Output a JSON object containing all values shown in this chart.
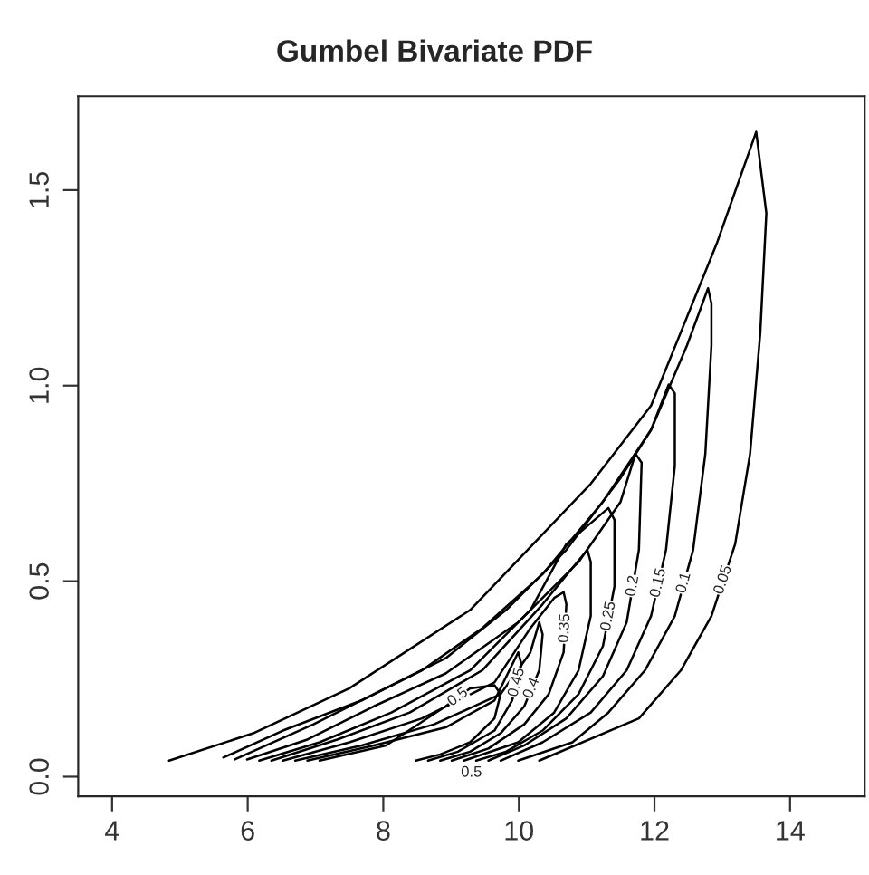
{
  "chart_data": {
    "type": "line",
    "title": "Gumbel Bivariate PDF",
    "xlim": [
      3.5,
      15.1
    ],
    "ylim": [
      -0.05,
      1.74
    ],
    "xticks": [
      4,
      6,
      8,
      10,
      12,
      14
    ],
    "yticks": [
      {
        "value": 0,
        "label": "0.0"
      },
      {
        "value": 0.5,
        "label": "0.5"
      },
      {
        "value": 1,
        "label": "1.0"
      },
      {
        "value": 1.5,
        "label": "1.5"
      }
    ],
    "grid": false,
    "legend": false,
    "marker": "none",
    "line_style": "solid",
    "series": [
      {
        "name": "0.05",
        "color": "#000000",
        "x": [
          4.84,
          6.08,
          7.5,
          9.28,
          11.06,
          11.95,
          12.92,
          13.5,
          13.65,
          13.56,
          13.41,
          13.19,
          12.84,
          12.39,
          11.77,
          10.3
        ],
        "values": [
          0.041,
          0.111,
          0.226,
          0.426,
          0.749,
          0.949,
          1.364,
          1.649,
          1.441,
          1.134,
          0.826,
          0.595,
          0.411,
          0.272,
          0.149,
          0.041
        ]
      },
      {
        "name": "0.1",
        "color": "#000000",
        "x": [
          5.64,
          6.52,
          7.68,
          8.57,
          9.46,
          10.35,
          11.24,
          11.95,
          12.48,
          12.79,
          12.84,
          12.84,
          12.75,
          12.57,
          12.3,
          11.86,
          11.32,
          10.79,
          9.99
        ],
        "values": [
          0.049,
          0.118,
          0.195,
          0.272,
          0.38,
          0.518,
          0.703,
          0.887,
          1.103,
          1.249,
          1.21,
          1.103,
          0.826,
          0.58,
          0.411,
          0.272,
          0.164,
          0.088,
          0.041
        ]
      },
      {
        "name": "0.15",
        "color": "#000000",
        "x": [
          5.81,
          6.97,
          7.86,
          8.92,
          9.81,
          10.7,
          11.5,
          11.95,
          12.21,
          12.3,
          12.3,
          12.17,
          11.95,
          11.59,
          11.06,
          10.35,
          9.73
        ],
        "values": [
          0.044,
          0.134,
          0.211,
          0.303,
          0.426,
          0.58,
          0.764,
          0.887,
          1.003,
          0.98,
          0.795,
          0.58,
          0.411,
          0.272,
          0.164,
          0.088,
          0.041
        ]
      },
      {
        "name": "0.2",
        "color": "#000000",
        "x": [
          5.99,
          6.88,
          7.86,
          8.92,
          9.99,
          10.88,
          11.5,
          11.72,
          11.81,
          11.77,
          11.59,
          11.24,
          10.7,
          10.08,
          9.55
        ],
        "values": [
          0.044,
          0.095,
          0.18,
          0.264,
          0.395,
          0.549,
          0.703,
          0.826,
          0.803,
          0.58,
          0.395,
          0.257,
          0.149,
          0.08,
          0.041
        ]
      },
      {
        "name": "0.25",
        "color": "#000000",
        "x": [
          6.17,
          7.06,
          8.12,
          9.28,
          10.17,
          10.7,
          11.32,
          11.41,
          11.41,
          11.24,
          10.88,
          10.35,
          9.81,
          9.37
        ],
        "values": [
          0.041,
          0.088,
          0.164,
          0.272,
          0.426,
          0.595,
          0.687,
          0.657,
          0.487,
          0.334,
          0.211,
          0.118,
          0.064,
          0.041
        ]
      },
      {
        "color": "#000000",
        "x": [
          6.35,
          7.32,
          8.39,
          9.46,
          10.35,
          11.01,
          11.06,
          11.06,
          10.88,
          10.52,
          9.99,
          9.19
        ],
        "values": [
          0.041,
          0.095,
          0.164,
          0.272,
          0.441,
          0.58,
          0.549,
          0.411,
          0.272,
          0.164,
          0.088,
          0.041
        ]
      },
      {
        "name": "0.35",
        "color": "#000000",
        "x": [
          6.52,
          7.5,
          8.57,
          9.64,
          10.17,
          10.52,
          10.66,
          10.7,
          10.66,
          10.44,
          10.08,
          9.55,
          9.01
        ],
        "values": [
          0.041,
          0.088,
          0.149,
          0.241,
          0.38,
          0.457,
          0.472,
          0.441,
          0.318,
          0.211,
          0.134,
          0.072,
          0.041
        ]
      },
      {
        "name": "0.4",
        "color": "#000000",
        "x": [
          6.7,
          7.68,
          8.75,
          9.73,
          10.17,
          10.3,
          10.35,
          10.3,
          10.08,
          9.73,
          9.28,
          8.84
        ],
        "values": [
          0.041,
          0.08,
          0.134,
          0.211,
          0.318,
          0.395,
          0.364,
          0.272,
          0.18,
          0.111,
          0.064,
          0.041
        ]
      },
      {
        "name": "0.45",
        "color": "#000000",
        "x": [
          6.88,
          7.86,
          8.92,
          9.64,
          9.99,
          10.04,
          9.9,
          9.64,
          9.1,
          8.66
        ],
        "values": [
          0.041,
          0.08,
          0.126,
          0.195,
          0.318,
          0.287,
          0.195,
          0.118,
          0.064,
          0.041
        ]
      },
      {
        "name": "0.5",
        "color": "#000000",
        "x": [
          7.06,
          8.04,
          8.92,
          9.28,
          9.64,
          9.73,
          9.64,
          9.28,
          8.84,
          8.48
        ],
        "values": [
          0.041,
          0.08,
          0.18,
          0.226,
          0.234,
          0.211,
          0.149,
          0.088,
          0.057,
          0.041
        ]
      }
    ],
    "annotations": [
      {
        "text": "0.5",
        "x": 9.3,
        "y": 0.01
      }
    ]
  }
}
